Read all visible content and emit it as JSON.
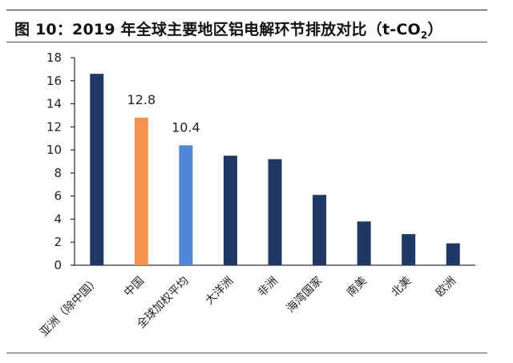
{
  "header": {
    "title_main": "图 10：2019 年全球主要地区铝电解环节排放对比（t-CO",
    "title_sub": "2",
    "title_end": "）"
  },
  "colors": {
    "bar_default": "#1f3864",
    "bar_china": "#f4944a",
    "bar_global_avg": "#4f86d6",
    "axis": "#000000"
  },
  "chart_data": {
    "type": "bar",
    "title": "2019 年全球主要地区铝电解环节排放对比（t-CO2）",
    "categories": [
      "亚洲（除中国）",
      "中国",
      "全球加权平均",
      "大洋洲",
      "非洲",
      "海湾国家",
      "南美",
      "北美",
      "欧洲"
    ],
    "values": [
      16.6,
      12.8,
      10.4,
      9.5,
      9.2,
      6.1,
      3.8,
      2.7,
      1.9
    ],
    "bar_colors": [
      "#1f3864",
      "#f4944a",
      "#4f86d6",
      "#1f3864",
      "#1f3864",
      "#1f3864",
      "#1f3864",
      "#1f3864",
      "#1f3864"
    ],
    "data_labels": [
      "",
      "12.8",
      "10.4",
      "",
      "",
      "",
      "",
      "",
      ""
    ],
    "ylim": [
      0,
      18
    ],
    "yticks": [
      0,
      2,
      4,
      6,
      8,
      10,
      12,
      14,
      16,
      18
    ],
    "xlabel": "",
    "ylabel": "",
    "grid": false,
    "legend": "none"
  }
}
